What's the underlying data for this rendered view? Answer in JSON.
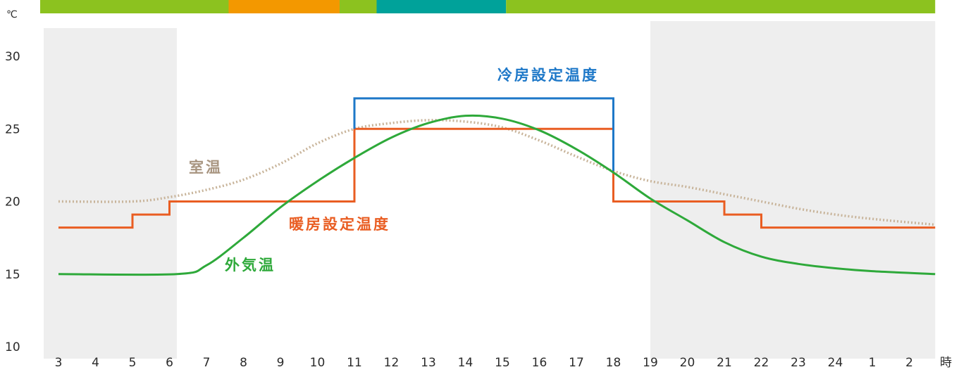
{
  "chart_data": {
    "type": "line",
    "y_unit": "℃",
    "x_unit": "時",
    "y_ticks": [
      "30",
      "25",
      "20",
      "15",
      "10"
    ],
    "ylim": [
      10,
      30
    ],
    "x_ticks": [
      "3",
      "4",
      "5",
      "6",
      "7",
      "8",
      "9",
      "10",
      "11",
      "12",
      "13",
      "14",
      "15",
      "16",
      "17",
      "18",
      "19",
      "20",
      "21",
      "22",
      "23",
      "24",
      "1",
      "2"
    ],
    "xlim": [
      3,
      26.7
    ],
    "grid": false,
    "shaded_periods": [
      [
        3,
        6.2
      ],
      [
        19,
        26.7
      ]
    ],
    "top_bar": [
      {
        "from": 3,
        "to": 7.6,
        "color": "#8cc21f"
      },
      {
        "from": 7.6,
        "to": 10.6,
        "color": "#f39800"
      },
      {
        "from": 10.6,
        "to": 11.6,
        "color": "#8cc21f"
      },
      {
        "from": 11.6,
        "to": 15.1,
        "color": "#00a29a"
      },
      {
        "from": 15.1,
        "to": 26.7,
        "color": "#8cc21f"
      }
    ],
    "series": [
      {
        "name": "冷房設定温度",
        "color": "#1e78c8",
        "style": "step",
        "x": [
          11,
          11,
          18,
          18
        ],
        "y": [
          25,
          27.1,
          27.1,
          22.1
        ]
      },
      {
        "name": "暖房設定温度",
        "color": "#e95d22",
        "style": "step",
        "x": [
          3,
          5,
          5,
          6,
          6,
          11,
          11,
          18,
          18,
          21,
          21,
          22,
          22,
          26.7
        ],
        "y": [
          18.2,
          18.2,
          19.1,
          19.1,
          20,
          20,
          25,
          25,
          20,
          20,
          19.1,
          19.1,
          18.2,
          18.2
        ]
      },
      {
        "name": "外気温",
        "color": "#2ea93a",
        "style": "curve",
        "x": [
          3,
          6.2,
          7,
          8,
          9,
          10,
          11,
          12,
          13,
          14,
          15,
          16,
          17,
          18,
          19,
          20,
          21,
          22,
          23,
          24,
          25,
          26.7
        ],
        "y": [
          15,
          15,
          15.6,
          17.5,
          19.6,
          21.4,
          23,
          24.4,
          25.4,
          25.9,
          25.7,
          24.9,
          23.6,
          22,
          20.2,
          18.7,
          17.2,
          16.2,
          15.7,
          15.4,
          15.2,
          15
        ]
      },
      {
        "name": "室温",
        "color": "#c8b49a",
        "style": "dotted",
        "x": [
          3,
          5,
          6,
          7,
          8,
          9,
          10,
          11,
          12,
          13,
          14,
          15,
          16,
          17,
          18,
          19,
          20,
          21,
          22,
          23,
          24,
          25,
          26.7
        ],
        "y": [
          20,
          20,
          20.3,
          20.8,
          21.5,
          22.6,
          24,
          25,
          25.4,
          25.6,
          25.5,
          25.1,
          24.2,
          23.1,
          22.1,
          21.4,
          21,
          20.5,
          20,
          19.5,
          19.1,
          18.8,
          18.4
        ]
      }
    ]
  }
}
